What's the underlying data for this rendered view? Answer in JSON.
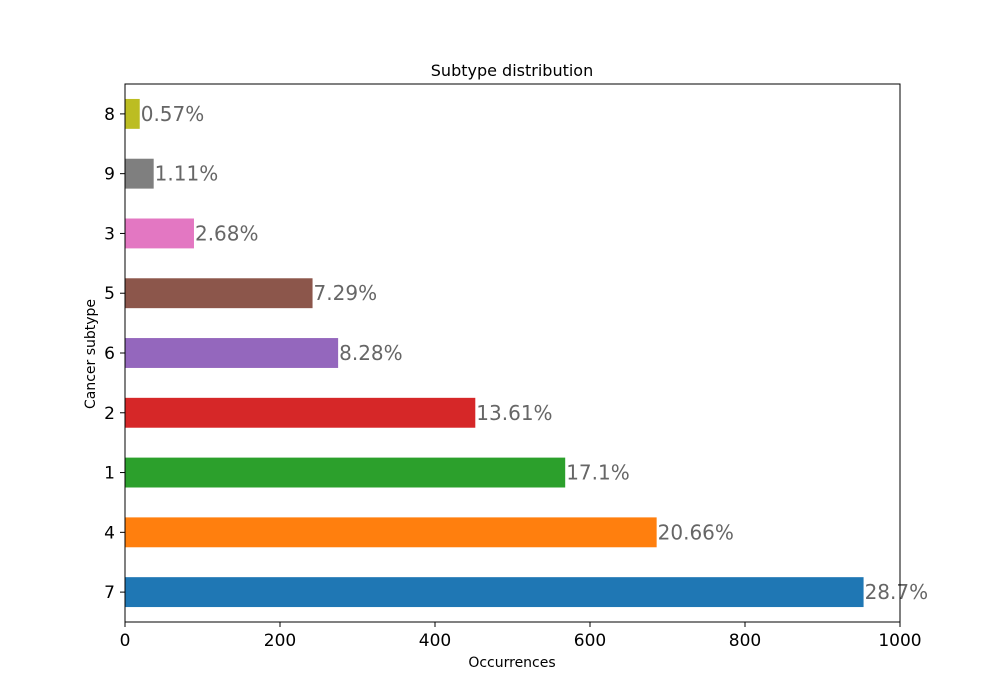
{
  "chart_data": {
    "type": "bar",
    "orientation": "horizontal",
    "title": "Subtype distribution",
    "xlabel": "Occurrences",
    "ylabel": "Cancer subtype",
    "categories": [
      "7",
      "4",
      "1",
      "2",
      "6",
      "5",
      "3",
      "9",
      "8"
    ],
    "values": [
      953,
      686,
      568,
      452,
      275,
      242,
      89,
      37,
      19
    ],
    "labels": [
      "28.7%",
      "20.66%",
      "17.1%",
      "13.61%",
      "8.28%",
      "7.29%",
      "2.68%",
      "1.11%",
      "0.57%"
    ],
    "colors": [
      "#1f77b4",
      "#ff7f0e",
      "#2ca02c",
      "#d62728",
      "#9467bd",
      "#8c564b",
      "#e377c2",
      "#7f7f7f",
      "#bcbd22"
    ],
    "xlim": [
      0,
      1000
    ],
    "xticks": [
      0,
      200,
      400,
      600,
      800,
      1000
    ],
    "grid": false,
    "legend": "none"
  }
}
